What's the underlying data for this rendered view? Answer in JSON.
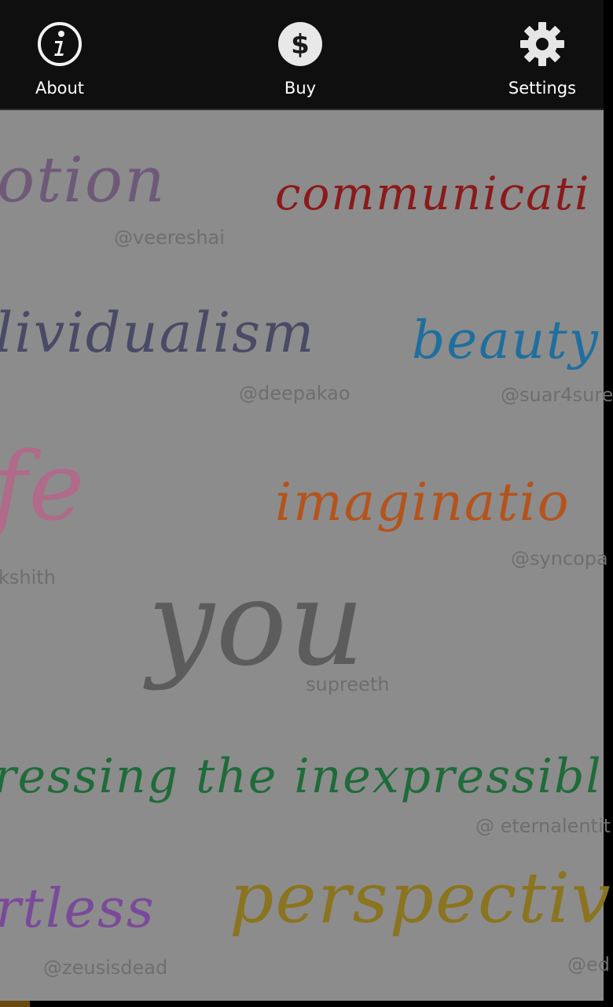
{
  "toolbar": {
    "about": {
      "label": "About",
      "icon": "info-icon"
    },
    "buy": {
      "label": "Buy",
      "icon": "dollar-icon"
    },
    "settings": {
      "label": "Settings",
      "icon": "gear-icon"
    }
  },
  "words": [
    {
      "id": "word-otion",
      "text": "otion",
      "color": "#6e5a78"
    },
    {
      "id": "word-communication",
      "text": "communicati",
      "color": "#8b1a1a"
    },
    {
      "id": "word-individualism",
      "text": "lividualism",
      "color": "#4a4a66"
    },
    {
      "id": "word-beauty",
      "text": "beauty",
      "color": "#1f6f9e"
    },
    {
      "id": "word-life",
      "text": "fe",
      "color": "#b06a8a"
    },
    {
      "id": "word-imagination",
      "text": "imaginatio",
      "color": "#b4541c"
    },
    {
      "id": "word-you",
      "text": "you",
      "color": "#5c5c5c"
    },
    {
      "id": "word-expressing",
      "text": "ressing the inexpressibl",
      "color": "#1f6b3a"
    },
    {
      "id": "word-artless",
      "text": "rtless",
      "color": "#7a4a9a"
    },
    {
      "id": "word-perspective",
      "text": "perspectiv",
      "color": "#8a7420"
    }
  ],
  "handles": [
    {
      "id": "handle-veereshai",
      "text": "@veereshai"
    },
    {
      "id": "handle-deepakao",
      "text": "@deepakao"
    },
    {
      "id": "handle-suar4sure",
      "text": "@suar4sure"
    },
    {
      "id": "handle-akshith",
      "text": "kshith"
    },
    {
      "id": "handle-syncopa",
      "text": "@syncopa"
    },
    {
      "id": "handle-supreeth",
      "text": "supreeth"
    },
    {
      "id": "handle-eternalentity",
      "text": "@ eternalentit"
    },
    {
      "id": "handle-zeusisdead",
      "text": "@zeusisdead"
    },
    {
      "id": "handle-ed",
      "text": "@ed"
    }
  ]
}
